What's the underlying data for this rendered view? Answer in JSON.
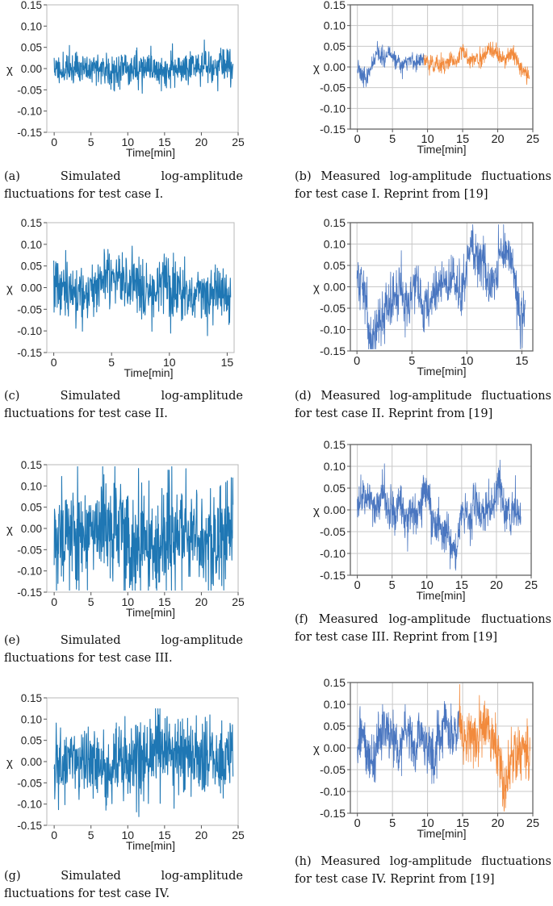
{
  "chart_data": [
    {
      "id": "a",
      "type": "line",
      "style": "sim",
      "caption": "(a) Simulated log-amplitude fluctuations for test case I.",
      "xlabel": "Time[min]",
      "ylabel": "χ",
      "xlim": [
        -1,
        25
      ],
      "ylim": [
        -0.15,
        0.15
      ],
      "xticks": [
        "0",
        "5",
        "10",
        "15",
        "20",
        "25"
      ],
      "yticks": [
        "0.15",
        "0.10",
        "0.05",
        "0.00",
        "-0.05",
        "-0.10",
        "-0.15"
      ],
      "grid": false,
      "duration": 24.3,
      "amplitude": 0.04,
      "n": 600,
      "seed": 11,
      "series": [
        {
          "color": "#1f77b4"
        }
      ]
    },
    {
      "id": "b",
      "type": "line",
      "style": "meas",
      "caption": "(b) Measured log-amplitude fluctuations for test case I. Reprint from [19]",
      "xlabel": "Time[min]",
      "ylabel": "χ",
      "xlim": [
        -1,
        25
      ],
      "ylim": [
        -0.15,
        0.15
      ],
      "xticks": [
        "0",
        "5",
        "10",
        "15",
        "20",
        "25"
      ],
      "yticks": [
        "0.15",
        "0.10",
        "0.05",
        "0.00",
        "-0.05",
        "-0.10",
        "-0.15"
      ],
      "grid": true,
      "duration": 24.5,
      "amplitude": 0.03,
      "n": 700,
      "seed": 23,
      "split": 9.5,
      "series": [
        {
          "color": "#4a76c0"
        },
        {
          "color": "#f28a3c"
        }
      ]
    },
    {
      "id": "c",
      "type": "line",
      "style": "sim",
      "caption": "(c) Simulated log-amplitude fluctuations for test case II.",
      "xlabel": "Time[min]",
      "ylabel": "χ",
      "xlim": [
        -0.6,
        15.6
      ],
      "ylim": [
        -0.15,
        0.15
      ],
      "xticks": [
        "0",
        "5",
        "10",
        "15"
      ],
      "yticks": [
        "0.15",
        "0.10",
        "0.05",
        "0.00",
        "-0.05",
        "-0.10",
        "-0.15"
      ],
      "grid": false,
      "duration": 15.3,
      "amplitude": 0.07,
      "n": 520,
      "seed": 37,
      "series": [
        {
          "color": "#1f77b4"
        }
      ]
    },
    {
      "id": "d",
      "type": "line",
      "style": "meas",
      "caption": "(d) Measured log-amplitude fluctuations for test case II. Reprint from [19]",
      "xlabel": "Time[min]",
      "ylabel": "χ",
      "xlim": [
        -0.6,
        16
      ],
      "ylim": [
        -0.15,
        0.15
      ],
      "xticks": [
        "0",
        "5",
        "10",
        "15"
      ],
      "yticks": [
        "0.15",
        "0.10",
        "0.05",
        "0.00",
        "-0.05",
        "-0.10",
        "-0.15"
      ],
      "grid": true,
      "duration": 15.3,
      "amplitude": 0.09,
      "n": 650,
      "seed": 41,
      "series": [
        {
          "color": "#4a76c0"
        }
      ]
    },
    {
      "id": "e",
      "type": "line",
      "style": "sim",
      "caption": "(e) Simulated log-amplitude fluctuations for test case III.",
      "xlabel": "Time[min]",
      "ylabel": "χ",
      "xlim": [
        -1,
        25
      ],
      "ylim": [
        -0.15,
        0.15
      ],
      "xticks": [
        "0",
        "5",
        "10",
        "15",
        "20",
        "25"
      ],
      "yticks": [
        "0.15",
        "0.10",
        "0.05",
        "0.00",
        "-0.05",
        "-0.10",
        "-0.15"
      ],
      "grid": false,
      "duration": 24.3,
      "amplitude": 0.13,
      "n": 620,
      "seed": 53,
      "series": [
        {
          "color": "#1f77b4"
        }
      ]
    },
    {
      "id": "f",
      "type": "line",
      "style": "meas",
      "caption": "(f) Measured log-amplitude fluctuations for test case III. Reprint from [19]",
      "xlabel": "Time[min]",
      "ylabel": "χ",
      "xlim": [
        -1,
        25
      ],
      "ylim": [
        -0.15,
        0.15
      ],
      "xticks": [
        "0",
        "5",
        "10",
        "15",
        "20",
        "25"
      ],
      "yticks": [
        "0.15",
        "0.10",
        "0.05",
        "0.00",
        "-0.05",
        "-0.10",
        "-0.15"
      ],
      "grid": true,
      "duration": 23.5,
      "amplitude": 0.07,
      "n": 700,
      "seed": 61,
      "series": [
        {
          "color": "#4a76c0"
        }
      ]
    },
    {
      "id": "g",
      "type": "line",
      "style": "sim",
      "caption": "(g) Simulated log-amplitude fluctuations for test case IV.",
      "xlabel": "Time[min]",
      "ylabel": "χ",
      "xlim": [
        -1,
        25
      ],
      "ylim": [
        -0.15,
        0.15
      ],
      "xticks": [
        "0",
        "5",
        "10",
        "15",
        "20",
        "25"
      ],
      "yticks": [
        "0.15",
        "0.10",
        "0.05",
        "0.00",
        "-0.05",
        "-0.10",
        "-0.15"
      ],
      "grid": false,
      "duration": 24.3,
      "amplitude": 0.09,
      "n": 620,
      "seed": 71,
      "series": [
        {
          "color": "#1f77b4"
        }
      ]
    },
    {
      "id": "h",
      "type": "line",
      "style": "meas",
      "caption": "(h) Measured log-amplitude fluctuations for test case IV. Reprint from [19]",
      "xlabel": "Time[min]",
      "ylabel": "χ",
      "xlim": [
        -1,
        25
      ],
      "ylim": [
        -0.15,
        0.15
      ],
      "xticks": [
        "0",
        "5",
        "10",
        "15",
        "20",
        "25"
      ],
      "yticks": [
        "0.15",
        "0.10",
        "0.05",
        "0.00",
        "-0.05",
        "-0.10",
        "-0.15"
      ],
      "grid": true,
      "duration": 24.6,
      "amplitude": 0.09,
      "n": 720,
      "seed": 83,
      "split": 14.5,
      "series": [
        {
          "color": "#4a76c0"
        },
        {
          "color": "#f28a3c"
        }
      ]
    }
  ]
}
